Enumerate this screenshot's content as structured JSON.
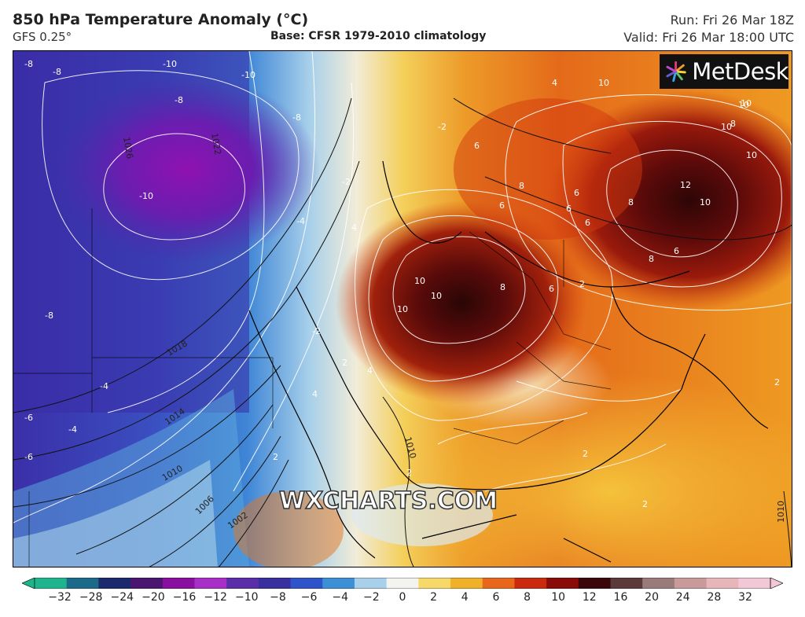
{
  "header": {
    "title": "850 hPa Temperature Anomaly (°C)",
    "model": "GFS 0.25°",
    "base": "Base: CFSR 1979-2010 climatology",
    "run": "Run: Fri 26 Mar 18Z",
    "valid": "Valid: Fri 26 Mar 18:00 UTC"
  },
  "branding": {
    "logo_text": "MetDesk",
    "watermark": "WXCHARTS.COM"
  },
  "colorbar": {
    "ticks": [
      "−32",
      "−28",
      "−24",
      "−20",
      "−16",
      "−12",
      "−10",
      "−8",
      "−6",
      "−4",
      "−2",
      "0",
      "2",
      "4",
      "6",
      "8",
      "10",
      "12",
      "16",
      "20",
      "24",
      "28",
      "32"
    ],
    "colors": [
      "#1fb58c",
      "#1b6a8a",
      "#1a2a6c",
      "#4b1670",
      "#8a0fa0",
      "#a72fc8",
      "#5a2ea8",
      "#3a2f9e",
      "#2f53c8",
      "#3d8fd8",
      "#a9d0ea",
      "#f3f3ef",
      "#f7d96a",
      "#f1b02a",
      "#e8671a",
      "#cc2a0f",
      "#8a0c0a",
      "#3a0808",
      "#5a3a3a",
      "#9a7b7b",
      "#c99a9a",
      "#e7b6b9",
      "#f3c8d6"
    ]
  },
  "map_labels": {
    "temperature": [
      "-8",
      "-8",
      "-10",
      "-10",
      "-8",
      "-8",
      "-10",
      "-8",
      "-6",
      "-4",
      "-4",
      "-6",
      "-4",
      "-2",
      "6",
      "4",
      "10",
      "10",
      "8",
      "6",
      "8",
      "6",
      "6",
      "8",
      "10",
      "10",
      "10",
      "12",
      "10",
      "8",
      "6",
      "10",
      "10",
      "10",
      "8",
      "6",
      "4",
      "4",
      "2",
      "2",
      "2",
      "2",
      "2",
      "-2",
      "-2",
      "2",
      "2",
      "4",
      "6"
    ],
    "pressure": [
      "1026",
      "1022",
      "1018",
      "1014",
      "1010",
      "1006",
      "1002",
      "1010",
      "1010"
    ]
  }
}
